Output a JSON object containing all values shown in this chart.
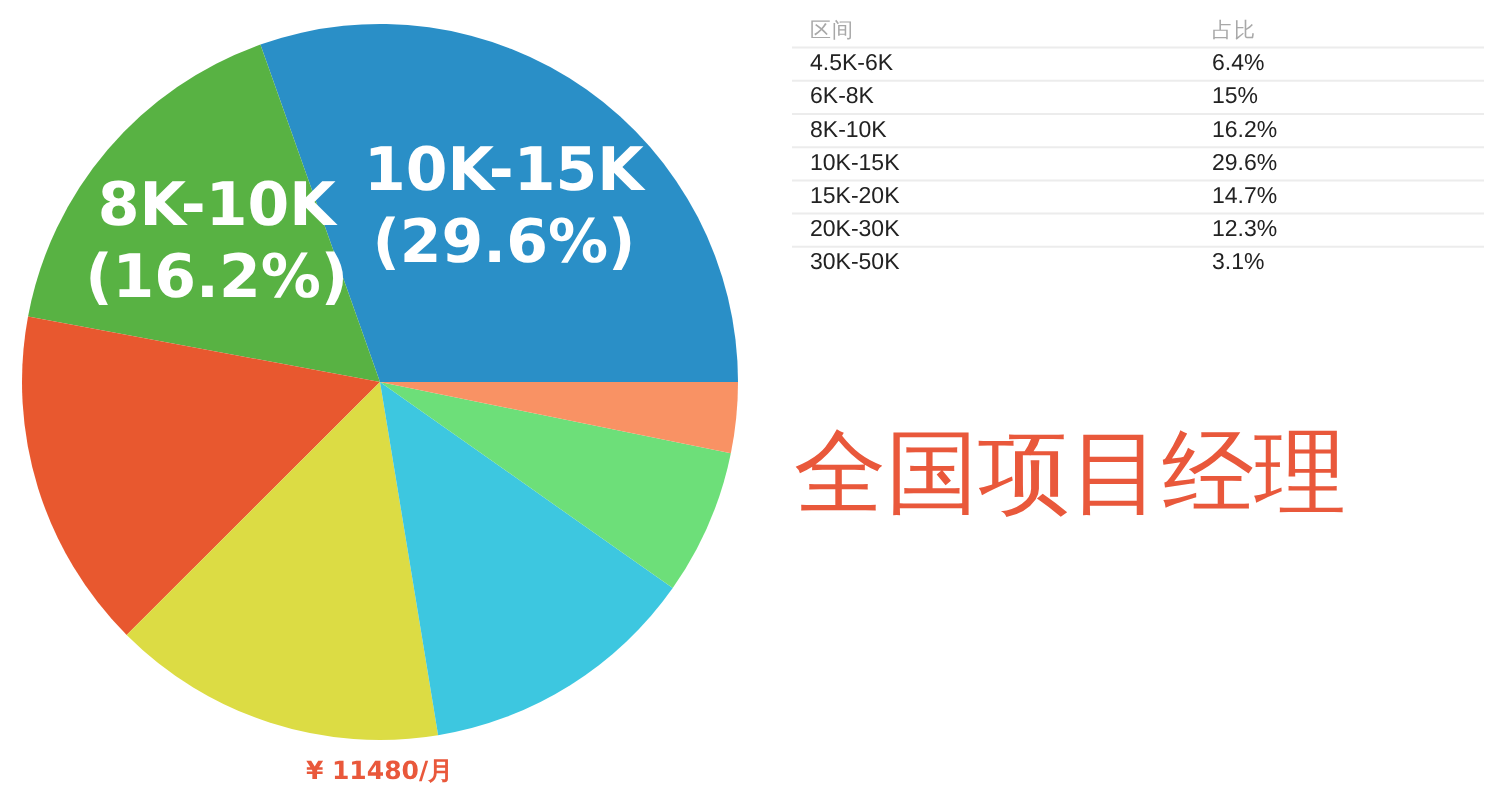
{
  "chart_data": [
    {
      "type": "pie",
      "title": "全国项目经理",
      "categories": [
        "10K-15K",
        "8K-10K",
        null,
        null,
        null,
        null,
        null
      ],
      "values": [
        29.6,
        16.2,
        15,
        14.7,
        12.3,
        6.4,
        3.1
      ],
      "colors": [
        "#2a8fc7",
        "#58b243",
        "#e8582f",
        "#dcdc44",
        "#3dc7e0",
        "#6ddf79",
        "#f99264"
      ],
      "value_labels": [
        "(29.6%)",
        "(16.2%)",
        null,
        null,
        null,
        null,
        null
      ],
      "annotations": [
        "¥ 11480/月"
      ]
    },
    {
      "type": "other",
      "annotations": [
        "区间",
        "占比",
        "4.5K-6K",
        "6.4%",
        "6K-8K",
        "15%",
        "8K-10K",
        "16.2%",
        "10K-15K",
        "29.6%",
        "15K-20K",
        "14.7%",
        "20K-30K",
        "12.3%",
        "30K-50K",
        "3.1%"
      ]
    }
  ]
}
